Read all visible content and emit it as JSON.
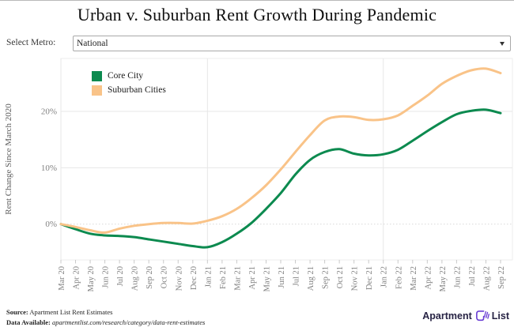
{
  "controls": {
    "label": "Select Metro:",
    "selected": "National"
  },
  "chart_data": {
    "type": "line",
    "title": "Urban v. Suburban Rent Growth During Pandemic",
    "ylabel": "Rent Change Since March 2020",
    "xlabel": "",
    "x": [
      "Mar 20",
      "Apr 20",
      "May 20",
      "Jun 20",
      "Jul 20",
      "Aug 20",
      "Sep 20",
      "Oct 20",
      "Nov 20",
      "Dec 20",
      "Jan 21",
      "Feb 21",
      "Mar 21",
      "Apr 21",
      "May 21",
      "Jun 21",
      "Jul 21",
      "Aug 21",
      "Sep 21",
      "Oct 21",
      "Nov 21",
      "Dec 21",
      "Jan 22",
      "Feb 22",
      "Mar 22",
      "Apr 22",
      "May 22",
      "Jun 22",
      "Jul 22",
      "Aug 22",
      "Sep 22"
    ],
    "series": [
      {
        "name": "Core City",
        "color": "#0c8a4f",
        "values": [
          0,
          -0.9,
          -1.7,
          -2.0,
          -2.1,
          -2.3,
          -2.7,
          -3.1,
          -3.5,
          -3.9,
          -4.1,
          -3.2,
          -1.7,
          0.2,
          2.7,
          5.5,
          8.8,
          11.4,
          12.8,
          13.3,
          12.5,
          12.2,
          12.4,
          13.2,
          14.8,
          16.5,
          18.1,
          19.5,
          20.1,
          20.3,
          19.7
        ]
      },
      {
        "name": "Suburban Cities",
        "color": "#f9c388",
        "values": [
          0,
          -0.5,
          -1.1,
          -1.5,
          -0.8,
          -0.3,
          0.0,
          0.2,
          0.2,
          0.1,
          0.6,
          1.4,
          2.7,
          4.6,
          6.9,
          9.7,
          12.8,
          15.8,
          18.4,
          19.1,
          19.0,
          18.5,
          18.6,
          19.3,
          21.0,
          22.8,
          24.9,
          26.3,
          27.3,
          27.6,
          26.8
        ]
      }
    ],
    "yticks": [
      0,
      10,
      20
    ],
    "ytick_labels": [
      "0%",
      "10%",
      "20%"
    ],
    "ylim": [
      -6.4,
      29.4
    ],
    "grid_x_months": [
      "Mar 20",
      "Jan 21",
      "Jan 22"
    ],
    "zero_line": "dotted",
    "legend_position": "top-left",
    "grid": true
  },
  "footer": {
    "source_label": "Source:",
    "source_text": " Apartment List Rent Estimates",
    "data_label": "Data Available:",
    "data_text": " apartmentlist.com/research/category/data-rent-estimates"
  },
  "logo": {
    "part1": "Apartment",
    "part2": "List",
    "icon_color": "#6b3fd4"
  }
}
